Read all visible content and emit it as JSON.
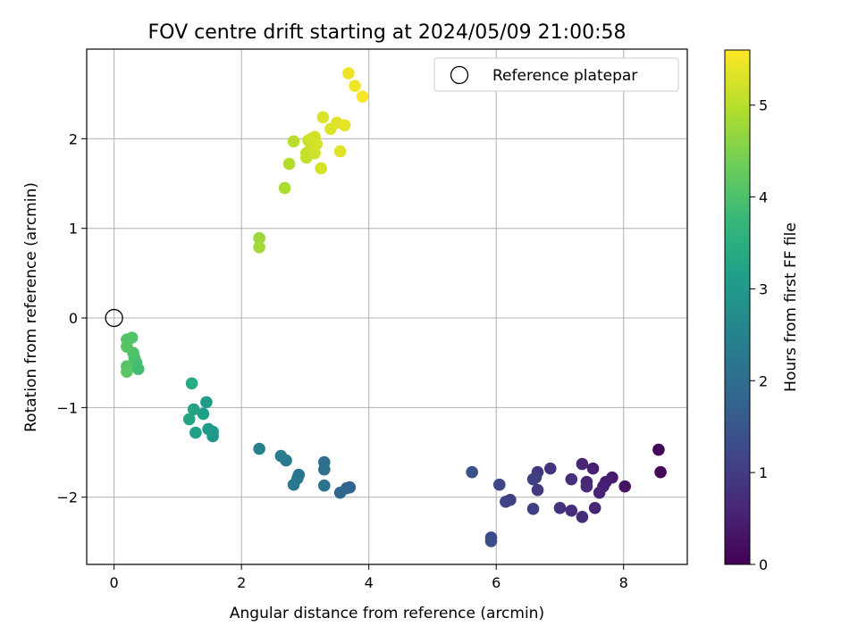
{
  "chart_data": {
    "type": "scatter",
    "title": "FOV centre drift starting at 2024/05/09 21:00:58",
    "xlabel": "Angular distance from reference (arcmin)",
    "ylabel": "Rotation from reference (arcmin)",
    "xlim": [
      -0.43,
      9.0
    ],
    "ylim": [
      -2.75,
      3.0
    ],
    "xticks": [
      0,
      2,
      4,
      6,
      8
    ],
    "yticks": [
      -2,
      -1,
      0,
      1,
      2
    ],
    "xtick_labels": [
      "0",
      "2",
      "4",
      "6",
      "8"
    ],
    "ytick_labels": [
      "−2",
      "−1",
      "0",
      "1",
      "2"
    ],
    "grid": true,
    "legend": {
      "placement": "top-right",
      "entries": [
        "Reference platepar"
      ]
    },
    "reference_point": {
      "name": "Reference platepar",
      "x": 0,
      "y": 0
    },
    "colorbar": {
      "label": "Hours from first FF file",
      "colormap": "viridis",
      "range": [
        0,
        5.6
      ],
      "ticks": [
        0,
        1,
        2,
        3,
        4,
        5
      ],
      "tick_labels": [
        "0",
        "1",
        "2",
        "3",
        "4",
        "5"
      ]
    },
    "series": [
      {
        "points": [
          [
            8.55,
            -1.47,
            0.05
          ],
          [
            8.58,
            -1.72,
            0.1
          ],
          [
            8.02,
            -1.88,
            0.3
          ],
          [
            7.82,
            -1.78,
            0.4
          ],
          [
            7.72,
            -1.83,
            0.45
          ],
          [
            7.68,
            -1.88,
            0.5
          ],
          [
            7.62,
            -1.95,
            0.55
          ],
          [
            7.55,
            -2.12,
            0.6
          ],
          [
            7.52,
            -1.68,
            0.5
          ],
          [
            7.42,
            -1.83,
            0.6
          ],
          [
            7.42,
            -1.88,
            0.65
          ],
          [
            7.35,
            -1.63,
            0.55
          ],
          [
            7.35,
            -2.22,
            0.7
          ],
          [
            7.18,
            -2.15,
            0.7
          ],
          [
            7.18,
            -1.8,
            0.75
          ],
          [
            7.0,
            -2.12,
            0.8
          ],
          [
            6.85,
            -1.68,
            0.85
          ],
          [
            6.65,
            -1.72,
            0.9
          ],
          [
            6.65,
            -1.92,
            0.95
          ],
          [
            6.62,
            -1.78,
            1.0
          ],
          [
            6.58,
            -2.13,
            1.05
          ],
          [
            6.58,
            -1.8,
            1.1
          ],
          [
            6.22,
            -2.03,
            1.1
          ],
          [
            6.15,
            -2.05,
            1.15
          ],
          [
            6.05,
            -1.86,
            1.2
          ],
          [
            5.92,
            -2.45,
            1.3
          ],
          [
            5.92,
            -2.49,
            1.35
          ],
          [
            5.62,
            -1.72,
            1.4
          ],
          [
            3.7,
            -1.89,
            1.75
          ],
          [
            3.65,
            -1.9,
            1.8
          ],
          [
            3.55,
            -1.95,
            1.85
          ],
          [
            3.3,
            -1.61,
            2.0
          ],
          [
            3.3,
            -1.69,
            2.05
          ],
          [
            3.3,
            -1.87,
            2.1
          ],
          [
            2.9,
            -1.75,
            2.15
          ],
          [
            2.88,
            -1.79,
            2.2
          ],
          [
            2.82,
            -1.86,
            2.25
          ],
          [
            2.7,
            -1.59,
            2.3
          ],
          [
            2.62,
            -1.54,
            2.35
          ],
          [
            2.28,
            -1.46,
            2.45
          ],
          [
            1.55,
            -1.27,
            2.95
          ],
          [
            1.55,
            -1.32,
            3.0
          ],
          [
            1.48,
            -1.24,
            3.05
          ],
          [
            1.45,
            -0.94,
            3.1
          ],
          [
            1.4,
            -1.07,
            3.15
          ],
          [
            1.28,
            -1.28,
            3.2
          ],
          [
            1.25,
            -1.02,
            3.25
          ],
          [
            1.18,
            -1.13,
            3.3
          ],
          [
            1.22,
            -0.73,
            3.4
          ],
          [
            0.38,
            -0.57,
            3.85
          ],
          [
            0.35,
            -0.5,
            3.9
          ],
          [
            0.32,
            -0.45,
            3.95
          ],
          [
            0.3,
            -0.39,
            4.0
          ],
          [
            0.28,
            -0.22,
            4.05
          ],
          [
            0.2,
            -0.24,
            4.05
          ],
          [
            0.2,
            -0.32,
            4.1
          ],
          [
            0.2,
            -0.54,
            4.1
          ],
          [
            0.2,
            -0.6,
            4.15
          ],
          [
            2.28,
            0.89,
            4.75
          ],
          [
            2.28,
            0.79,
            4.8
          ],
          [
            2.68,
            1.45,
            4.9
          ],
          [
            2.75,
            1.72,
            4.95
          ],
          [
            2.82,
            1.97,
            5.0
          ],
          [
            3.02,
            1.79,
            5.1
          ],
          [
            3.02,
            1.84,
            5.1
          ],
          [
            3.05,
            1.98,
            5.15
          ],
          [
            3.08,
            1.88,
            5.15
          ],
          [
            3.1,
            2.0,
            5.2
          ],
          [
            3.15,
            1.84,
            5.2
          ],
          [
            3.15,
            2.02,
            5.2
          ],
          [
            3.18,
            1.94,
            5.25
          ],
          [
            3.25,
            1.67,
            5.25
          ],
          [
            3.28,
            2.24,
            5.3
          ],
          [
            3.4,
            2.11,
            5.3
          ],
          [
            3.5,
            2.18,
            5.35
          ],
          [
            3.55,
            1.86,
            5.35
          ],
          [
            3.62,
            2.15,
            5.4
          ],
          [
            3.68,
            2.73,
            5.45
          ],
          [
            3.78,
            2.59,
            5.5
          ],
          [
            3.9,
            2.47,
            5.55
          ]
        ]
      }
    ]
  }
}
